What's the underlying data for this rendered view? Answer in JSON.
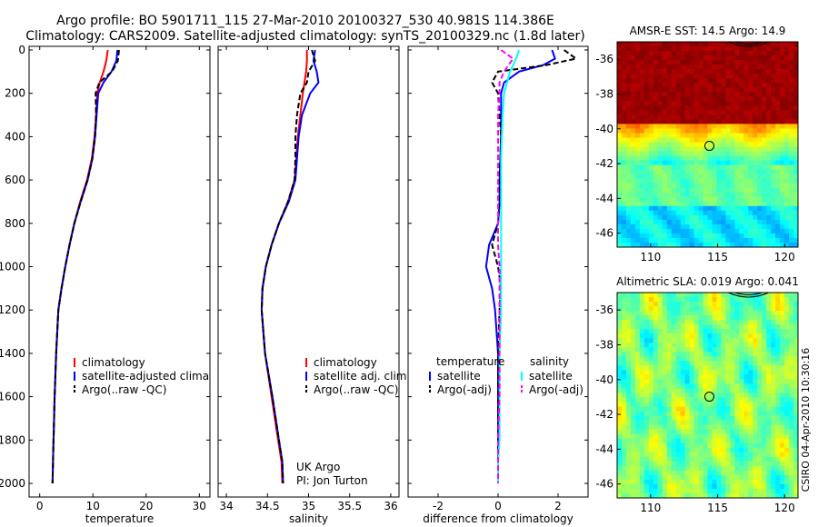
{
  "header": {
    "line1": "Argo profile: BO 5901711_115 27-Mar-2010 20100327_530 40.981S 114.386E",
    "line2": "Climatology: CARS2009. Satellite-adjusted climatology: synTS_20100329.nc (1.8d later)"
  },
  "side_credit": "CSIRO 04-Apr-2010 10:30:16",
  "colors": {
    "climatology": "#ff0000",
    "satellite": "#0000ff",
    "argo": "#000000",
    "cyan": "#00ffff",
    "magenta": "#ff00ff"
  },
  "chart_data": [
    {
      "type": "line",
      "xlabel": "temperature",
      "xlim": [
        -2,
        32
      ],
      "ylim": [
        2050,
        0
      ],
      "xticks": [
        0,
        10,
        20,
        30
      ],
      "yticks": [
        0,
        200,
        400,
        600,
        800,
        1000,
        1200,
        1400,
        1600,
        1800,
        2000
      ],
      "legend": [
        "climatology",
        "satellite-adjusted climatology",
        "Argo(..raw -QC)"
      ],
      "series": [
        {
          "name": "climatology",
          "color": "#ff0000",
          "dash": false,
          "x": [
            12.8,
            12.5,
            12.0,
            11.3,
            10.8,
            10.6,
            10.3,
            9.8,
            8.9,
            7.6,
            6.5,
            5.6,
            4.8,
            4.1,
            3.5,
            3.1,
            2.8,
            2.6,
            2.5,
            2.4
          ],
          "y": [
            0,
            50,
            100,
            150,
            200,
            300,
            400,
            500,
            600,
            700,
            800,
            900,
            1000,
            1100,
            1200,
            1400,
            1600,
            1800,
            1900,
            2000
          ]
        },
        {
          "name": "satellite-adjusted climatology",
          "color": "#0000ff",
          "dash": false,
          "x": [
            14.6,
            14.4,
            13.5,
            12.0,
            11.0,
            10.7,
            10.4,
            9.9,
            9.0,
            7.7,
            6.5,
            5.6,
            4.8,
            4.1,
            3.5,
            3.1,
            2.8,
            2.6,
            2.5,
            2.4
          ],
          "y": [
            0,
            50,
            100,
            150,
            200,
            300,
            400,
            500,
            600,
            700,
            800,
            900,
            1000,
            1100,
            1200,
            1400,
            1600,
            1800,
            1900,
            2000
          ]
        },
        {
          "name": "Argo(..raw -QC)",
          "color": "#000000",
          "dash": true,
          "x": [
            14.9,
            14.7,
            13.6,
            11.2,
            10.5,
            10.6,
            10.4,
            9.9,
            9.0,
            7.7,
            6.5,
            5.6,
            4.8,
            4.1,
            3.5,
            3.1,
            2.8,
            2.6,
            2.5,
            2.4
          ],
          "y": [
            0,
            50,
            100,
            150,
            200,
            300,
            400,
            500,
            600,
            700,
            800,
            900,
            1000,
            1100,
            1200,
            1400,
            1600,
            1800,
            1900,
            2000
          ]
        }
      ]
    },
    {
      "type": "line",
      "xlabel": "salinity",
      "xlim": [
        33.9,
        36.1
      ],
      "ylim": [
        2050,
        0
      ],
      "xticks": [
        34,
        34.5,
        35,
        35.5,
        36
      ],
      "yticks": [
        0,
        200,
        400,
        600,
        800,
        1000,
        1200,
        1400,
        1600,
        1800,
        2000
      ],
      "legend": [
        "climatology",
        "satellite adj. clim.",
        "Argo(..raw -QC)"
      ],
      "annotation": [
        "UK Argo",
        "PI: Jon Turton"
      ],
      "series": [
        {
          "name": "climatology",
          "color": "#ff0000",
          "dash": false,
          "x": [
            34.98,
            34.98,
            34.97,
            34.95,
            34.93,
            34.9,
            34.87,
            34.85,
            34.83,
            34.75,
            34.64,
            34.55,
            34.48,
            34.44,
            34.43,
            34.47,
            34.55,
            34.63,
            34.67,
            34.68
          ],
          "y": [
            0,
            50,
            100,
            150,
            200,
            300,
            400,
            500,
            600,
            700,
            800,
            900,
            1000,
            1100,
            1200,
            1400,
            1600,
            1800,
            1900,
            2000
          ]
        },
        {
          "name": "satellite adj. clim.",
          "color": "#0000ff",
          "dash": false,
          "x": [
            35.08,
            35.06,
            35.1,
            35.12,
            35.02,
            34.92,
            34.88,
            34.86,
            34.84,
            34.76,
            34.64,
            34.55,
            34.48,
            34.44,
            34.43,
            34.47,
            34.56,
            34.64,
            34.68,
            34.69
          ],
          "y": [
            0,
            50,
            100,
            150,
            200,
            300,
            400,
            500,
            600,
            700,
            800,
            900,
            1000,
            1100,
            1200,
            1400,
            1600,
            1800,
            1900,
            2000
          ]
        },
        {
          "name": "Argo(..raw -QC)",
          "color": "#000000",
          "dash": true,
          "x": [
            35.04,
            35.08,
            35.0,
            34.98,
            34.9,
            34.86,
            34.84,
            34.84,
            34.83,
            34.75,
            34.64,
            34.55,
            34.48,
            34.44,
            34.43,
            34.47,
            34.56,
            34.64,
            34.68,
            34.69
          ],
          "y": [
            0,
            50,
            100,
            150,
            200,
            300,
            400,
            500,
            600,
            700,
            800,
            900,
            1000,
            1100,
            1200,
            1400,
            1600,
            1800,
            1900,
            2000
          ]
        }
      ]
    },
    {
      "type": "line",
      "xlabel": "difference from climatology",
      "xlim": [
        -3,
        3
      ],
      "ylim": [
        2050,
        0
      ],
      "xticks": [
        -2,
        0,
        2
      ],
      "yticks": [
        0,
        200,
        400,
        600,
        800,
        1000,
        1200,
        1400,
        1600,
        1800,
        2000
      ],
      "legend_titles": [
        "temperature",
        "salinity"
      ],
      "legend": [
        "satellite",
        "Argo(-adj)",
        "satellite",
        "Argo(-adj)"
      ],
      "series": [
        {
          "name": "satellite",
          "group": "temperature",
          "color": "#0000ff",
          "dash": false,
          "x": [
            1.8,
            1.9,
            1.5,
            0.7,
            0.2,
            0.1,
            0.1,
            0.05,
            0.05,
            0.0,
            -0.3,
            -0.4,
            -0.2,
            -0.1,
            0.0,
            0.0,
            0.0,
            0.0,
            0.0
          ],
          "y": [
            0,
            40,
            70,
            100,
            150,
            200,
            400,
            600,
            700,
            800,
            900,
            1000,
            1100,
            1200,
            1400,
            1600,
            1800,
            1900,
            2000
          ]
        },
        {
          "name": "Argo(-adj)",
          "group": "temperature",
          "color": "#000000",
          "dash": true,
          "x": [
            2.2,
            2.6,
            1.6,
            0.0,
            -0.2,
            0.0,
            0.1,
            0.05,
            0.05,
            0.0,
            -0.2,
            0.0,
            0.1,
            0.05,
            0.0,
            0.0,
            0.0,
            0.0,
            0.0
          ],
          "y": [
            0,
            40,
            70,
            100,
            150,
            200,
            400,
            600,
            700,
            800,
            900,
            1000,
            1100,
            1200,
            1400,
            1600,
            1800,
            1900,
            2000
          ]
        },
        {
          "name": "satellite",
          "group": "salinity",
          "color": "#00ffff",
          "dash": false,
          "x": [
            0.7,
            0.6,
            0.4,
            0.3,
            0.2,
            0.15,
            0.1,
            0.1,
            0.1,
            0.1,
            0.1,
            0.1,
            0.1,
            0.05,
            0.05,
            0.05,
            0.0,
            0.0
          ],
          "y": [
            0,
            40,
            100,
            150,
            200,
            300,
            500,
            700,
            800,
            900,
            1000,
            1100,
            1200,
            1400,
            1600,
            1800,
            1900,
            2000
          ]
        },
        {
          "name": "Argo(-adj)",
          "group": "salinity",
          "color": "#ff00ff",
          "dash": true,
          "x": [
            0.1,
            0.5,
            0.2,
            0.05,
            0.05,
            0.0,
            0.0,
            0.0,
            0.0,
            0.0,
            0.05,
            0.05,
            0.05,
            0.05,
            0.05,
            0.0,
            0.0,
            0.0
          ],
          "y": [
            0,
            40,
            100,
            150,
            200,
            300,
            500,
            700,
            800,
            900,
            1000,
            1100,
            1200,
            1400,
            1600,
            1800,
            1900,
            2000
          ]
        }
      ]
    },
    {
      "type": "heatmap",
      "title": "AMSR-E SST: 14.5 Argo: 14.9",
      "xlim": [
        107.5,
        121
      ],
      "ylim": [
        -46.8,
        -35
      ],
      "xticks": [
        110,
        115,
        120
      ],
      "yticks": [
        -36,
        -38,
        -40,
        -42,
        -44,
        -46
      ],
      "marker": {
        "lon": 114.386,
        "lat": -40.981
      }
    },
    {
      "type": "heatmap",
      "title": "Altimetric SLA: 0.019 Argo: 0.041",
      "xlim": [
        107.5,
        121
      ],
      "ylim": [
        -46.8,
        -35
      ],
      "xticks": [
        110,
        115,
        120
      ],
      "yticks": [
        -36,
        -38,
        -40,
        -42,
        -44,
        -46
      ],
      "marker": {
        "lon": 114.386,
        "lat": -40.981
      }
    }
  ]
}
